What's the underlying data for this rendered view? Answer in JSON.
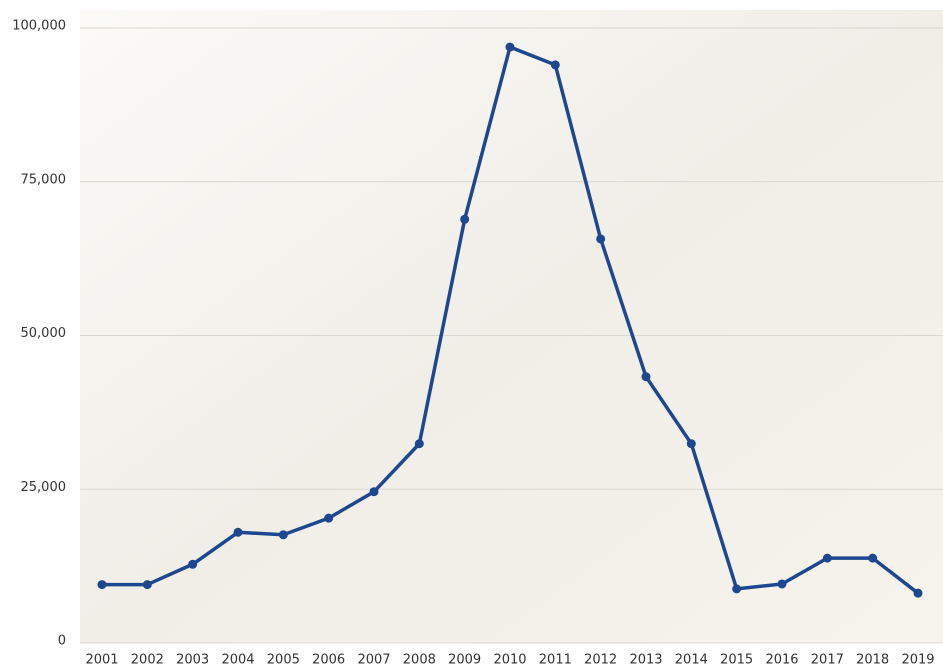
{
  "chart_data": {
    "type": "line",
    "categories": [
      "2001",
      "2002",
      "2003",
      "2004",
      "2005",
      "2006",
      "2007",
      "2008",
      "2009",
      "2010",
      "2011",
      "2012",
      "2013",
      "2014",
      "2015",
      "2016",
      "2017",
      "2018",
      "2019"
    ],
    "values": [
      9500,
      9500,
      12800,
      18000,
      17600,
      20300,
      24600,
      32400,
      68900,
      96900,
      94000,
      65700,
      43300,
      32400,
      8800,
      9600,
      13800,
      13800,
      8100
    ],
    "color": "#1d478f",
    "ylim": [
      0,
      100000
    ],
    "yticks": [
      0,
      {
        "value": 25000,
        "label": "25,000"
      },
      {
        "value": 50000,
        "label": "50,000"
      },
      {
        "value": 75000,
        "label": "75,000"
      },
      {
        "value": 100000,
        "label": "100,000"
      }
    ],
    "grid": true
  }
}
